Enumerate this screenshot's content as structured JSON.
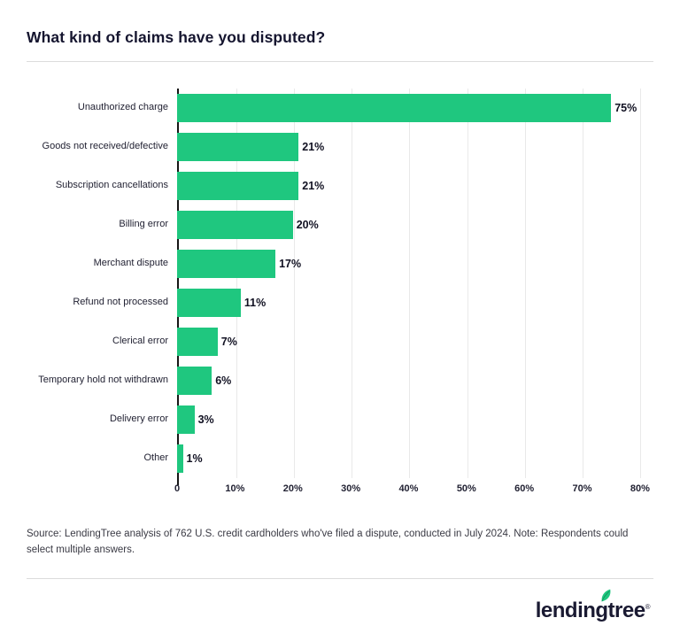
{
  "page": {
    "title": "What kind of claims have you disputed?",
    "source_note": "Source: LendingTree analysis of 762 U.S. credit cardholders who've filed a dispute, conducted in July 2024. Note: Respondents could select multiple answers.",
    "logo_text": "lendingtree",
    "logo_reg": "®"
  },
  "colors": {
    "bar_green": "#1fc77f",
    "leaf_green": "#1fc77f",
    "text_dark": "#1a1a32",
    "gridline": "#e9e9e9"
  },
  "chart_data": {
    "type": "bar",
    "orientation": "horizontal",
    "title": "What kind of claims have you disputed?",
    "categories": [
      "Unauthorized charge",
      "Goods not received/defective",
      "Subscription cancellations",
      "Billing error",
      "Merchant dispute",
      "Refund not processed",
      "Clerical error",
      "Temporary hold not withdrawn",
      "Delivery error",
      "Other"
    ],
    "values": [
      75,
      21,
      21,
      20,
      17,
      11,
      7,
      6,
      3,
      1
    ],
    "value_labels": [
      "75%",
      "21%",
      "21%",
      "20%",
      "17%",
      "11%",
      "7%",
      "6%",
      "3%",
      "1%"
    ],
    "xlabel": "",
    "ylabel": "",
    "xlim": [
      0,
      80
    ],
    "plot_max": 82,
    "x_ticks": [
      "0",
      "10%",
      "20%",
      "30%",
      "40%",
      "50%",
      "60%",
      "70%",
      "80%"
    ],
    "grid": true,
    "legend": false,
    "bar_color": "#1fc77f"
  }
}
